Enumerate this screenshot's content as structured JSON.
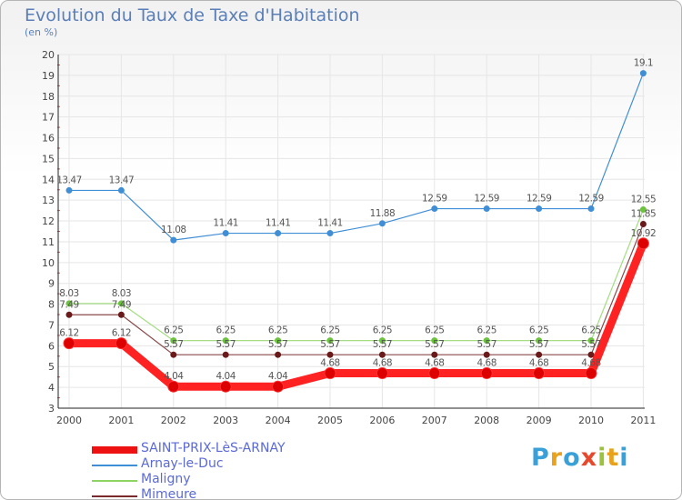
{
  "title": "Evolution du Taux de Taxe d'Habitation",
  "subtitle": "(en %)",
  "logo": {
    "letters": [
      "P",
      "r",
      "o",
      "x",
      "i",
      "t",
      "i"
    ],
    "colors": [
      "#3aa0d8",
      "#e8a21c",
      "#3aa0d8",
      "#e64a2e",
      "#9bc23c",
      "#e8a21c",
      "#3aa0d8"
    ]
  },
  "chart_data": {
    "type": "line",
    "title": "Evolution du Taux de Taxe d'Habitation",
    "ylabel": "(en %)",
    "x": [
      "2000",
      "2001",
      "2002",
      "2003",
      "2004",
      "2005",
      "2006",
      "2007",
      "2008",
      "2009",
      "2010",
      "2011"
    ],
    "ylim": [
      3,
      20
    ],
    "yticks": [
      "3",
      "4",
      "5",
      "6",
      "7",
      "8",
      "9",
      "10",
      "11",
      "12",
      "13",
      "14",
      "15",
      "16",
      "17",
      "18",
      "19",
      "20"
    ],
    "grid": true,
    "series": [
      {
        "name": "SAINT-PRIX-LèS-ARNAY",
        "color": "#ee1111",
        "values": [
          6.12,
          6.12,
          4.04,
          4.04,
          4.04,
          4.68,
          4.68,
          4.68,
          4.68,
          4.68,
          4.68,
          10.92
        ],
        "labels": [
          "6.12",
          "6.12",
          "4.04",
          "4.04",
          "4.04",
          "4.68",
          "4.68",
          "4.68",
          "4.68",
          "4.68",
          "4.68",
          "10.92"
        ]
      },
      {
        "name": "Arnay-le-Duc",
        "color": "#3f8ed6",
        "values": [
          13.47,
          13.47,
          11.08,
          11.41,
          11.41,
          11.41,
          11.88,
          12.59,
          12.59,
          12.59,
          12.59,
          19.1
        ],
        "labels": [
          "13.47",
          "13.47",
          "11.08",
          "11.41",
          "11.41",
          "11.41",
          "11.88",
          "12.59",
          "12.59",
          "12.59",
          "12.59",
          "19.1"
        ]
      },
      {
        "name": "Maligny",
        "color": "#8ed463",
        "values": [
          8.03,
          8.03,
          6.25,
          6.25,
          6.25,
          6.25,
          6.25,
          6.25,
          6.25,
          6.25,
          6.25,
          12.55
        ],
        "labels": [
          "8.03",
          "8.03",
          "6.25",
          "6.25",
          "6.25",
          "6.25",
          "6.25",
          "6.25",
          "6.25",
          "6.25",
          "6.25",
          "12.55"
        ]
      },
      {
        "name": "Mimeure",
        "color": "#7a2a2a",
        "values": [
          7.49,
          7.49,
          5.57,
          5.57,
          5.57,
          5.57,
          5.57,
          5.57,
          5.57,
          5.57,
          5.57,
          11.85
        ],
        "labels": [
          "7.49",
          "7.49",
          "5.57",
          "5.57",
          "5.57",
          "5.57",
          "5.57",
          "5.57",
          "5.57",
          "5.57",
          "5.57",
          "11.85"
        ]
      }
    ]
  }
}
